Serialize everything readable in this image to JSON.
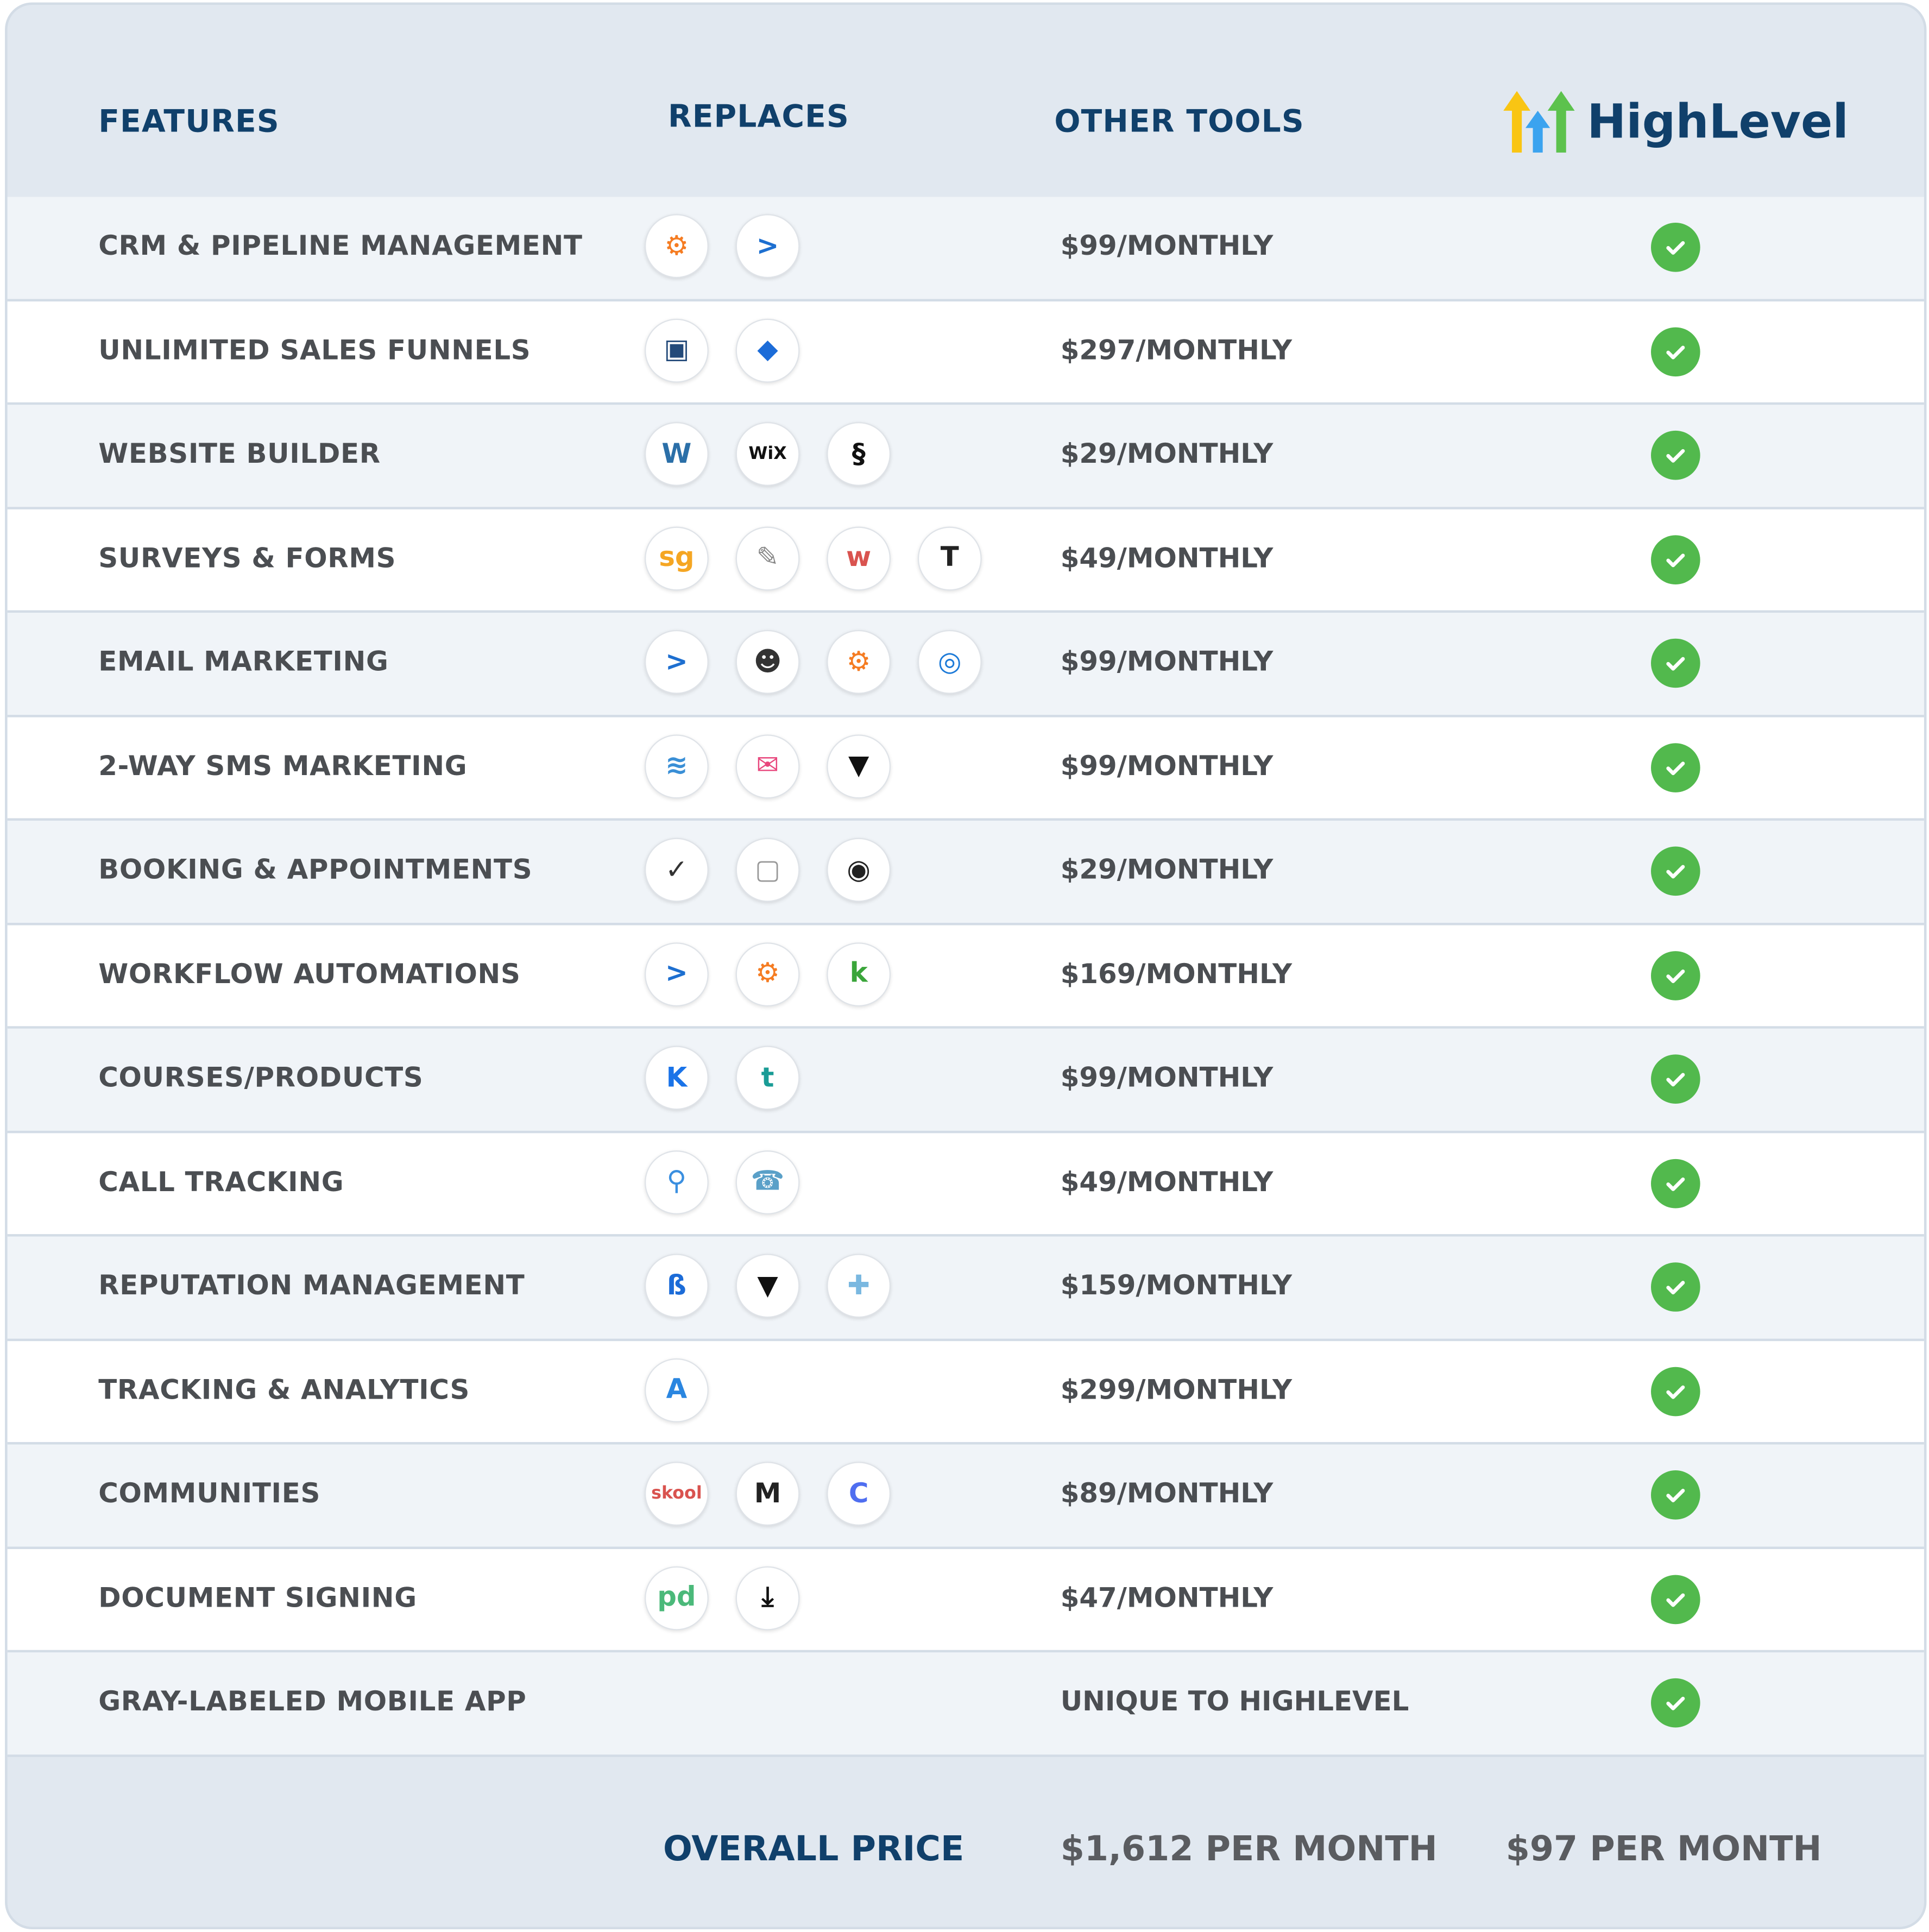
{
  "header": {
    "features": "FEATURES",
    "replaces": "REPLACES",
    "other_tools": "OTHER TOOLS",
    "brand": "HighLevel"
  },
  "colors": {
    "navy": "#10406b",
    "text": "#4b4e52",
    "check": "#52b94d",
    "header_bg": "#e1e8f0"
  },
  "rows": [
    {
      "feature": "CRM & PIPELINE MANAGEMENT",
      "price": "$99/MONTHLY",
      "icons": [
        {
          "name": "hubspot-icon",
          "glyph": "⚙",
          "color": "#f57c22"
        },
        {
          "name": "activecampaign-icon",
          "glyph": ">",
          "color": "#1d6fd0"
        }
      ]
    },
    {
      "feature": "UNLIMITED SALES FUNNELS",
      "price": "$297/MONTHLY",
      "icons": [
        {
          "name": "clickfunnels-icon",
          "glyph": "▣",
          "color": "#234a7a"
        },
        {
          "name": "leadpages-icon",
          "glyph": "◆",
          "color": "#1c6cd8"
        }
      ]
    },
    {
      "feature": "WEBSITE BUILDER",
      "price": "$29/MONTHLY",
      "icons": [
        {
          "name": "wordpress-icon",
          "glyph": "W",
          "color": "#2b6fa8"
        },
        {
          "name": "wix-icon",
          "glyph": "WiX",
          "color": "#111111"
        },
        {
          "name": "squarespace-icon",
          "glyph": "§",
          "color": "#111111"
        }
      ]
    },
    {
      "feature": "SURVEYS & FORMS",
      "price": "$49/MONTHLY",
      "icons": [
        {
          "name": "surveygizmo-icon",
          "glyph": "sg",
          "color": "#f5a623"
        },
        {
          "name": "jotform-icon",
          "glyph": "✎",
          "color": "#888888"
        },
        {
          "name": "wufoo-icon",
          "glyph": "w",
          "color": "#d9534f"
        },
        {
          "name": "typeform-icon",
          "glyph": "T",
          "color": "#222222"
        }
      ]
    },
    {
      "feature": "EMAIL MARKETING",
      "price": "$99/MONTHLY",
      "icons": [
        {
          "name": "activecampaign-icon",
          "glyph": ">",
          "color": "#1d6fd0"
        },
        {
          "name": "mailchimp-icon",
          "glyph": "☻",
          "color": "#333333"
        },
        {
          "name": "hubspot-icon",
          "glyph": "⚙",
          "color": "#f57c22"
        },
        {
          "name": "constant-contact-icon",
          "glyph": "◎",
          "color": "#1c7ad8"
        }
      ]
    },
    {
      "feature": "2-WAY SMS MARKETING",
      "price": "$99/MONTHLY",
      "icons": [
        {
          "name": "eztexting-icon",
          "glyph": "≋",
          "color": "#3a8fd6"
        },
        {
          "name": "textmagic-icon",
          "glyph": "✉",
          "color": "#e8467c"
        },
        {
          "name": "podium-icon",
          "glyph": "▼",
          "color": "#111111"
        }
      ]
    },
    {
      "feature": "BOOKING & APPOINTMENTS",
      "price": "$29/MONTHLY",
      "icons": [
        {
          "name": "calendly-icon",
          "glyph": "✓",
          "color": "#333333"
        },
        {
          "name": "calendar-icon",
          "glyph": "▢",
          "color": "#999999"
        },
        {
          "name": "acuity-icon",
          "glyph": "◉",
          "color": "#222222"
        }
      ]
    },
    {
      "feature": "WORKFLOW AUTOMATIONS",
      "price": "$169/MONTHLY",
      "icons": [
        {
          "name": "activecampaign-icon",
          "glyph": ">",
          "color": "#1d6fd0"
        },
        {
          "name": "hubspot-icon",
          "glyph": "⚙",
          "color": "#f57c22"
        },
        {
          "name": "keap-icon",
          "glyph": "k",
          "color": "#3aa53a"
        }
      ]
    },
    {
      "feature": "COURSES/PRODUCTS",
      "price": "$99/MONTHLY",
      "icons": [
        {
          "name": "kajabi-icon",
          "glyph": "K",
          "color": "#1a73e8"
        },
        {
          "name": "teachable-icon",
          "glyph": "t",
          "color": "#1a9c96"
        }
      ]
    },
    {
      "feature": "CALL TRACKING",
      "price": "$49/MONTHLY",
      "icons": [
        {
          "name": "callrail-icon",
          "glyph": "⚲",
          "color": "#3a8fe0"
        },
        {
          "name": "phone-icon",
          "glyph": "☎",
          "color": "#5aa0c8"
        }
      ]
    },
    {
      "feature": "REPUTATION MANAGEMENT",
      "price": "$159/MONTHLY",
      "icons": [
        {
          "name": "birdeye-icon",
          "glyph": "ß",
          "color": "#1c6cd8"
        },
        {
          "name": "podium-icon",
          "glyph": "▼",
          "color": "#111111"
        },
        {
          "name": "grade-us-icon",
          "glyph": "✚",
          "color": "#7ab8e0"
        }
      ]
    },
    {
      "feature": "TRACKING & ANALYTICS",
      "price": "$299/MONTHLY",
      "icons": [
        {
          "name": "analytics-icon",
          "glyph": "A",
          "color": "#2a86e0"
        }
      ]
    },
    {
      "feature": "COMMUNITIES",
      "price": "$89/MONTHLY",
      "icons": [
        {
          "name": "skool-icon",
          "glyph": "skool",
          "color": "#d9534f"
        },
        {
          "name": "mighty-networks-icon",
          "glyph": "M",
          "color": "#222222"
        },
        {
          "name": "circle-icon",
          "glyph": "C",
          "color": "#4f6ef0"
        }
      ]
    },
    {
      "feature": "DOCUMENT SIGNING",
      "price": "$47/MONTHLY",
      "icons": [
        {
          "name": "pandadoc-icon",
          "glyph": "pd",
          "color": "#4bb97a"
        },
        {
          "name": "signnow-icon",
          "glyph": "⤓",
          "color": "#111111"
        }
      ]
    },
    {
      "feature": "GRAY-LABELED MOBILE APP",
      "price": "UNIQUE TO HIGHLEVEL",
      "icons": []
    }
  ],
  "footer": {
    "label": "OVERALL PRICE",
    "other_total": "$1,612 PER MONTH",
    "highlevel_total": "$97 PER MONTH"
  }
}
